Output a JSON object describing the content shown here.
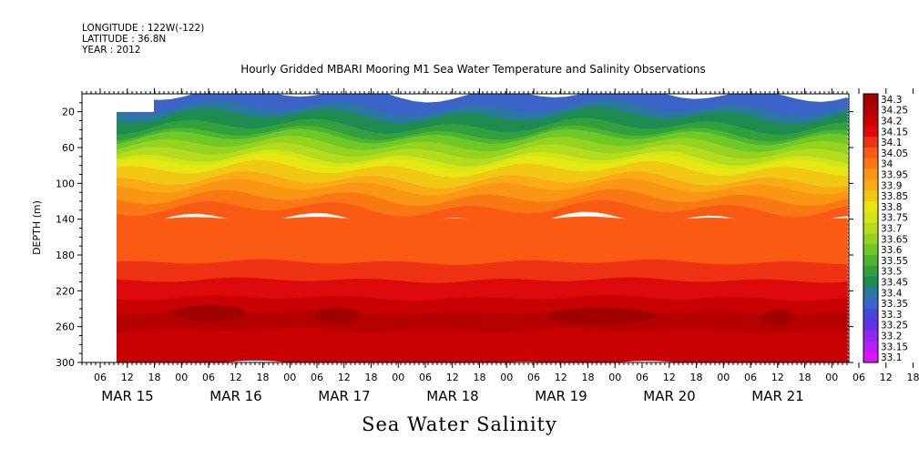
{
  "header": {
    "longitude": "LONGITUDE : 122W(-122)",
    "latitude": "LATITUDE : 36.8N",
    "year": "YEAR : 2012"
  },
  "title": "Hourly Gridded MBARI Mooring M1 Sea Water Temperature and Salinity Observations",
  "bottom_title": "Sea Water Salinity",
  "chart_data": {
    "type": "heatmap",
    "title": "Hourly Gridded MBARI Mooring M1 Sea Water Temperature and Salinity Observations",
    "subtitle": "Sea Water Salinity",
    "ylabel": "DEPTH (m)",
    "xlabel": "",
    "ylim": [
      300,
      0
    ],
    "y_ticks": [
      20,
      60,
      100,
      140,
      180,
      220,
      260,
      300
    ],
    "x_hour_ticks": [
      "06",
      "12",
      "18",
      "00",
      "06",
      "12",
      "18",
      "00",
      "06",
      "12",
      "18",
      "00",
      "06",
      "12",
      "18",
      "00",
      "06",
      "12",
      "18",
      "00",
      "06",
      "12",
      "18",
      "00",
      "06",
      "12",
      "18",
      "00",
      "06",
      "12",
      "18",
      "00"
    ],
    "x_day_labels": [
      "MAR 15",
      "MAR 16",
      "MAR 17",
      "MAR 18",
      "MAR 19",
      "MAR 20",
      "MAR 21"
    ],
    "colorbar_levels": [
      "34.3",
      "34.25",
      "34.2",
      "34.15",
      "34.1",
      "34.05",
      "34",
      "33.95",
      "33.9",
      "33.85",
      "33.8",
      "33.75",
      "33.7",
      "33.65",
      "33.6",
      "33.55",
      "33.5",
      "33.45",
      "33.4",
      "33.35",
      "33.3",
      "33.25",
      "33.2",
      "33.15",
      "33.1"
    ],
    "colorbar_colors": [
      "#a00000",
      "#b40000",
      "#c80000",
      "#dc0a0a",
      "#f03214",
      "#fa5a14",
      "#fa7814",
      "#fa9614",
      "#faaa14",
      "#f0c814",
      "#e6e614",
      "#d2e614",
      "#b4dc1e",
      "#96d21e",
      "#6ec828",
      "#4bb432",
      "#32a03c",
      "#1e8c50",
      "#2878a0",
      "#3c64c8",
      "#4646dc",
      "#6432e6",
      "#8c28f0",
      "#b41efa",
      "#dc14fa"
    ],
    "depth_profile": [
      {
        "depth": 10,
        "value": 33.35
      },
      {
        "depth": 20,
        "value": 33.4
      },
      {
        "depth": 40,
        "value": 33.5
      },
      {
        "depth": 60,
        "value": 33.65
      },
      {
        "depth": 80,
        "value": 33.8
      },
      {
        "depth": 100,
        "value": 33.9
      },
      {
        "depth": 120,
        "value": 34.0
      },
      {
        "depth": 140,
        "value": 34.05
      },
      {
        "depth": 180,
        "value": 34.05
      },
      {
        "depth": 200,
        "value": 34.1
      },
      {
        "depth": 220,
        "value": 34.15
      },
      {
        "depth": 250,
        "value": 34.25
      },
      {
        "depth": 280,
        "value": 34.2
      },
      {
        "depth": 300,
        "value": 34.2
      }
    ]
  }
}
